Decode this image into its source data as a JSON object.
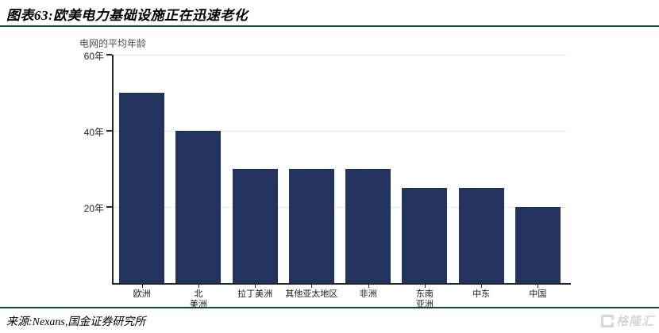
{
  "figure": {
    "title": "图表63:欧美电力基础设施正在迅速老化",
    "source": "来源:Nexans,国金证券研究所"
  },
  "watermark": {
    "logo": "G",
    "text": "格隆汇"
  },
  "chart_data": {
    "type": "bar",
    "title": "",
    "ylabel": "电网的平均年龄",
    "xlabel": "",
    "unit": "年",
    "categories": [
      "欧洲",
      "北\n美洲",
      "拉丁美洲",
      "其他亚太地区",
      "非洲",
      "东南\n亚洲",
      "中东",
      "中国"
    ],
    "values": [
      50,
      40,
      30,
      30,
      30,
      25,
      25,
      20
    ],
    "ylim": [
      0,
      60
    ],
    "yticks": [
      20,
      40,
      60
    ],
    "ytick_suffix": "年",
    "grid": true,
    "legend": "none",
    "bar_color": "#21335E"
  },
  "colors": {
    "bar": "#21335E",
    "rule": "#0D4545",
    "grid": "#E4E4E4",
    "axis": "#262626",
    "watermark": "#D7D7D7"
  }
}
